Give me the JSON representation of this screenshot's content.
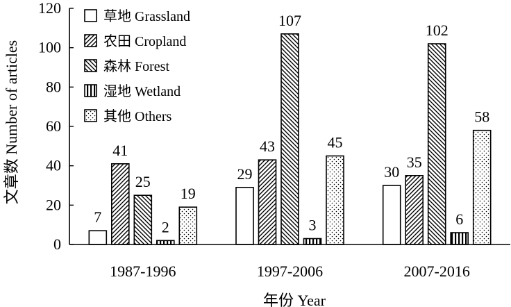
{
  "chart_data": {
    "type": "bar",
    "title": "",
    "xlabel": "年份 Year",
    "ylabel": "文章数 Number of articles",
    "ylim": [
      0,
      120
    ],
    "yticks": [
      0,
      20,
      40,
      60,
      80,
      100,
      120
    ],
    "grid": false,
    "legend_position": "top-left",
    "categories": [
      "1987-1996",
      "1997-2006",
      "2007-2016"
    ],
    "series": [
      {
        "name": "草地 Grassland",
        "pattern": "none",
        "values": [
          7,
          29,
          30
        ]
      },
      {
        "name": "农田 Cropland",
        "pattern": "diag-up",
        "values": [
          41,
          43,
          35
        ]
      },
      {
        "name": "森林 Forest",
        "pattern": "diag-down",
        "values": [
          25,
          107,
          102
        ]
      },
      {
        "name": "湿地 Wetland",
        "pattern": "vertical",
        "values": [
          2,
          3,
          6
        ]
      },
      {
        "name": "其他 Others",
        "pattern": "dots",
        "values": [
          19,
          45,
          58
        ]
      }
    ]
  }
}
